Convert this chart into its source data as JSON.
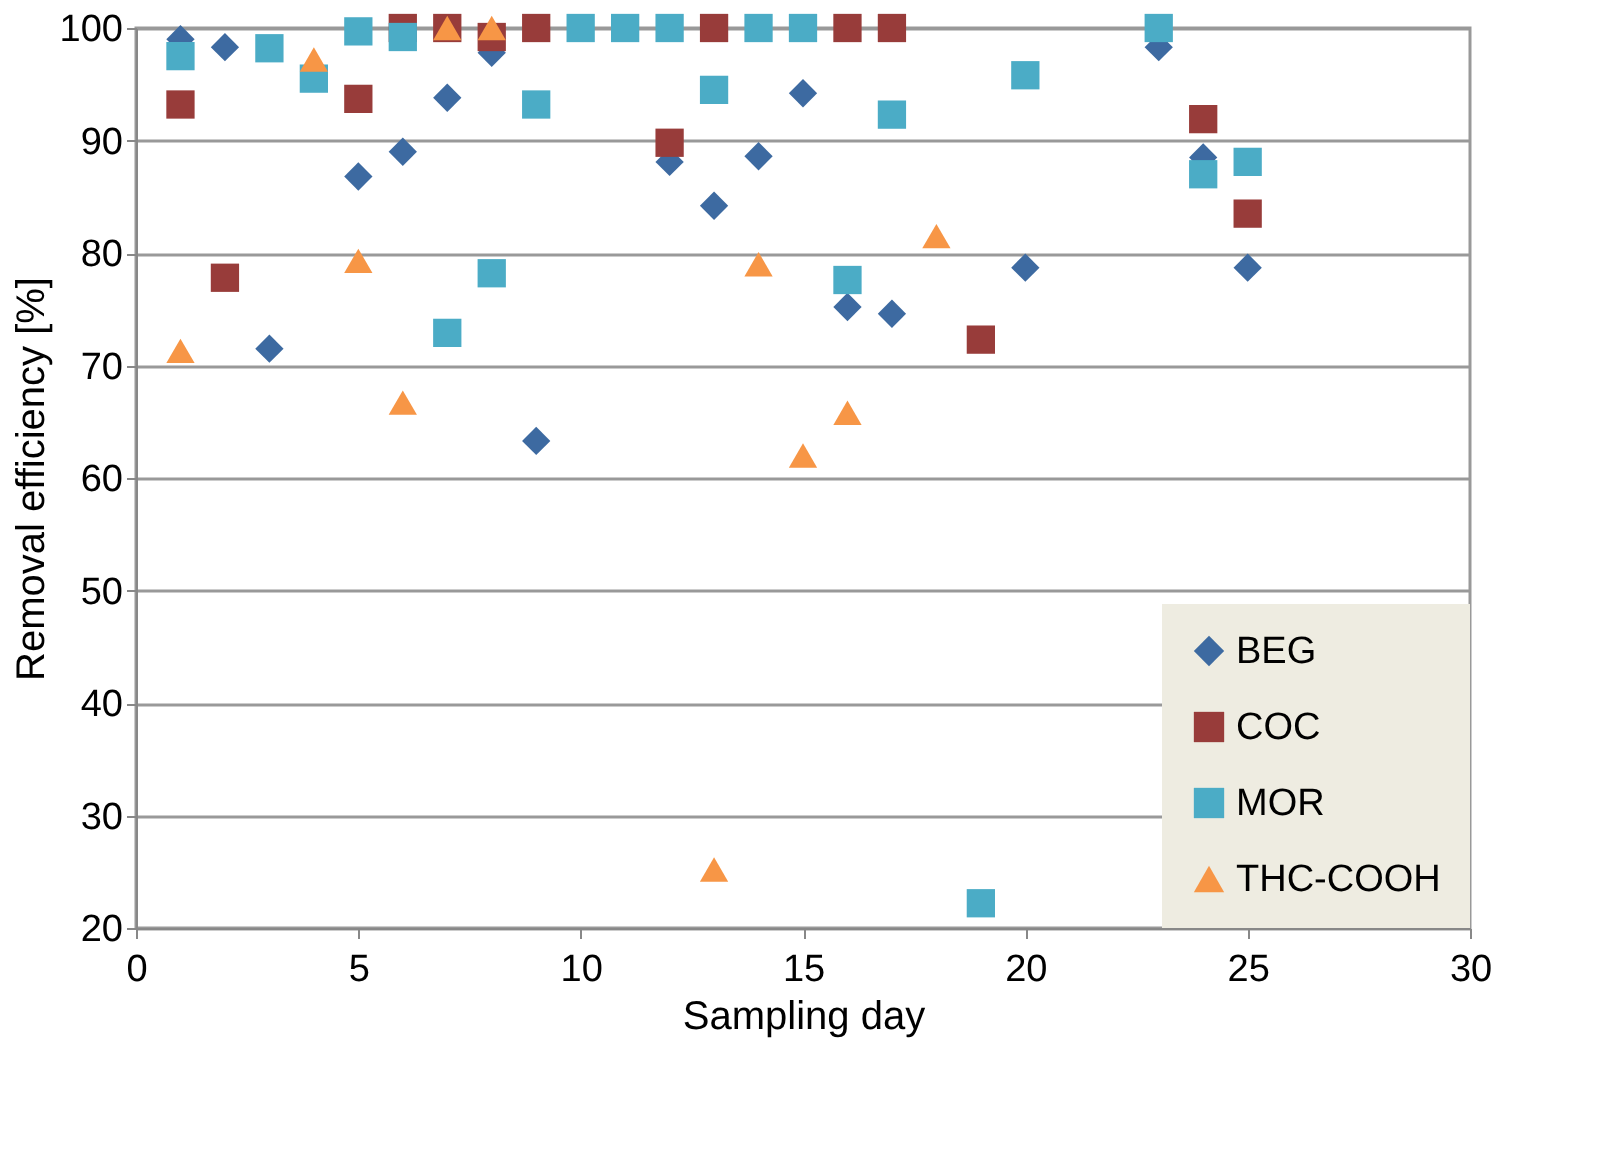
{
  "chart_data": {
    "type": "scatter",
    "xlabel": "Sampling day",
    "ylabel": "Removal efficiency [%]",
    "xlim": [
      0,
      30
    ],
    "xticks": [
      0,
      5,
      10,
      15,
      20,
      25,
      30
    ],
    "ylim": [
      20,
      100
    ],
    "yticks": [
      20,
      30,
      40,
      50,
      60,
      70,
      80,
      90,
      100
    ],
    "grid": "y",
    "legend": "bottom right",
    "series": [
      {
        "name": "BEG",
        "color": "#3d6aa1",
        "marker": "diamond",
        "x": [
          1,
          2,
          3,
          5,
          6,
          7,
          8,
          9,
          12,
          13,
          14,
          15,
          16,
          17,
          20,
          23,
          24,
          25
        ],
        "values": [
          99,
          98.3,
          71.5,
          86.8,
          89,
          93.8,
          97.8,
          63.3,
          88.1,
          84.2,
          88.6,
          94.2,
          75.2,
          74.6,
          78.7,
          98.3,
          88.5,
          78.7
        ]
      },
      {
        "name": "COC",
        "color": "#983c3a",
        "marker": "square",
        "x": [
          1,
          2,
          5,
          6,
          7,
          8,
          9,
          12,
          13,
          14,
          16,
          17,
          19,
          24,
          25
        ],
        "values": [
          93.2,
          77.8,
          93.7,
          100,
          100,
          99.2,
          100,
          89.8,
          100,
          null,
          100,
          100,
          72.3,
          91.9,
          83.5
        ]
      },
      {
        "name": "MOR",
        "color": "#4bacc6",
        "marker": "square",
        "x": [
          1,
          3,
          4,
          5,
          6,
          7,
          8,
          9,
          10,
          11,
          12,
          13,
          14,
          15,
          16,
          17,
          19,
          20,
          23,
          24,
          25
        ],
        "values": [
          97.5,
          98.2,
          95.5,
          99.7,
          99.2,
          72.9,
          78.2,
          93.2,
          100,
          100,
          100,
          94.5,
          100,
          100,
          77.6,
          92.3,
          22.2,
          95.8,
          100,
          87,
          88.1
        ]
      },
      {
        "name": "THC-COOH",
        "color": "#f79646",
        "marker": "triangle",
        "x": [
          1,
          4,
          5,
          6,
          7,
          8,
          13,
          14,
          15,
          16,
          18
        ],
        "values": [
          71.3,
          97.2,
          79.3,
          66.7,
          100,
          100,
          25.2,
          79,
          62,
          65.8,
          81.5
        ]
      }
    ]
  }
}
